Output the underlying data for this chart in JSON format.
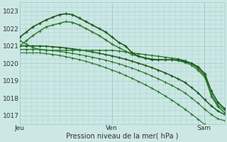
{
  "background_color": "#cce8e4",
  "grid_color": "#aaceca",
  "line_color_dark": "#1a5c1a",
  "line_color_mid": "#2e7d2e",
  "xlabel": "Pression niveau de la mer( hPa )",
  "ylim": [
    1016.5,
    1023.5
  ],
  "yticks": [
    1017,
    1018,
    1019,
    1020,
    1021,
    1022,
    1023
  ],
  "day_labels": [
    "Jeu",
    "Ven",
    "Sam"
  ],
  "day_positions": [
    0,
    0.45,
    0.9
  ],
  "lines": {
    "high_arc": [
      1021.5,
      1021.8,
      1022.1,
      1022.3,
      1022.5,
      1022.65,
      1022.8,
      1022.85,
      1022.8,
      1022.6,
      1022.4,
      1022.2,
      1022.0,
      1021.8,
      1021.5,
      1021.2,
      1021.0,
      1020.6,
      1020.4,
      1020.3,
      1020.2,
      1020.2,
      1020.2,
      1020.2,
      1020.2,
      1020.1,
      1020.0,
      1019.8,
      1019.4,
      1018.4,
      1017.75,
      1017.4
    ],
    "mid_arc": [
      1021.0,
      1021.3,
      1021.6,
      1021.85,
      1022.1,
      1022.2,
      1022.3,
      1022.4,
      1022.35,
      1022.2,
      1022.0,
      1021.8,
      1021.6,
      1021.35,
      1021.1,
      1020.9,
      1020.7,
      1020.5,
      1020.4,
      1020.3,
      1020.25,
      1020.2,
      1020.2,
      1020.2,
      1020.15,
      1020.05,
      1019.9,
      1019.6,
      1019.2,
      1018.2,
      1017.6,
      1017.3
    ],
    "flat_high": [
      1021.3,
      1021.1,
      1020.9,
      1020.8,
      1020.75,
      1020.75,
      1020.75,
      1020.75,
      1020.75,
      1020.75,
      1020.75,
      1020.75,
      1020.75,
      1020.75,
      1020.75,
      1020.7,
      1020.65,
      1020.6,
      1020.55,
      1020.5,
      1020.45,
      1020.4,
      1020.35,
      1020.3,
      1020.25,
      1020.15,
      1020.0,
      1019.7,
      1019.3,
      1018.1,
      1017.5,
      1017.15
    ],
    "slope1": [
      1021.0,
      1021.0,
      1021.0,
      1021.0,
      1020.98,
      1020.95,
      1020.92,
      1020.88,
      1020.83,
      1020.78,
      1020.72,
      1020.65,
      1020.58,
      1020.5,
      1020.42,
      1020.33,
      1020.23,
      1020.12,
      1020.0,
      1019.88,
      1019.75,
      1019.6,
      1019.45,
      1019.28,
      1019.1,
      1018.9,
      1018.6,
      1018.3,
      1017.9,
      1017.55,
      1017.25,
      1017.05
    ],
    "slope2": [
      1020.8,
      1020.8,
      1020.8,
      1020.8,
      1020.77,
      1020.73,
      1020.68,
      1020.63,
      1020.57,
      1020.5,
      1020.43,
      1020.35,
      1020.27,
      1020.18,
      1020.08,
      1019.97,
      1019.85,
      1019.72,
      1019.58,
      1019.43,
      1019.27,
      1019.1,
      1018.92,
      1018.73,
      1018.52,
      1018.3,
      1018.0,
      1017.7,
      1017.35,
      1017.05,
      1016.8,
      1016.7
    ],
    "slope3": [
      1020.6,
      1020.6,
      1020.6,
      1020.6,
      1020.56,
      1020.51,
      1020.45,
      1020.38,
      1020.3,
      1020.21,
      1020.11,
      1020.0,
      1019.88,
      1019.75,
      1019.61,
      1019.46,
      1019.3,
      1019.13,
      1018.95,
      1018.76,
      1018.56,
      1018.35,
      1018.12,
      1017.88,
      1017.63,
      1017.36,
      1017.08,
      1016.78,
      1016.47,
      1016.15,
      1015.82,
      1015.5
    ]
  }
}
